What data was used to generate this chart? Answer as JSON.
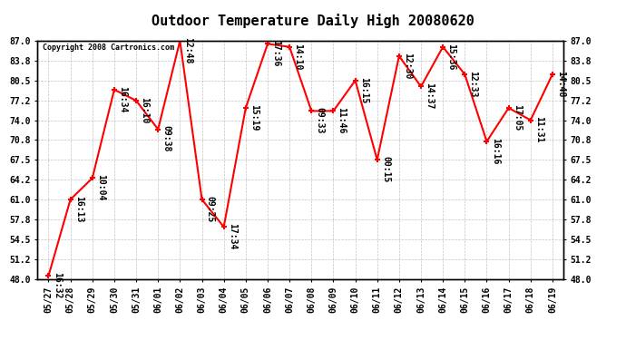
{
  "title": "Outdoor Temperature Daily High 20080620",
  "copyright": "Copyright 2008 Cartronics.com",
  "x_labels": [
    "05/27",
    "05/28",
    "05/29",
    "05/30",
    "05/31",
    "06/01",
    "06/02",
    "06/03",
    "06/04",
    "06/05",
    "06/06",
    "06/07",
    "06/08",
    "06/09",
    "06/10",
    "06/11",
    "06/12",
    "06/13",
    "06/14",
    "06/15",
    "06/16",
    "06/17",
    "06/18",
    "06/19"
  ],
  "y_values": [
    48.5,
    61.0,
    64.5,
    79.0,
    77.2,
    72.5,
    87.0,
    61.0,
    56.5,
    76.0,
    86.5,
    86.0,
    75.5,
    75.5,
    80.5,
    67.5,
    84.5,
    79.5,
    86.0,
    81.5,
    70.5,
    76.0,
    74.0,
    81.5
  ],
  "point_labels": [
    "16:32",
    "16:13",
    "10:04",
    "16:34",
    "16:10",
    "09:38",
    "12:48",
    "09:25",
    "17:34",
    "15:19",
    "17:36",
    "14:10",
    "09:33",
    "11:46",
    "16:15",
    "00:15",
    "12:30",
    "14:37",
    "15:36",
    "12:33",
    "16:16",
    "17:05",
    "11:31",
    "14:48"
  ],
  "ylim": [
    48.0,
    87.0
  ],
  "yticks": [
    48.0,
    51.2,
    54.5,
    57.8,
    61.0,
    64.2,
    67.5,
    70.8,
    74.0,
    77.2,
    80.5,
    83.8,
    87.0
  ],
  "line_color": "#ff0000",
  "marker_color": "#ff0000",
  "bg_color": "#ffffff",
  "plot_bg_color": "#ffffff",
  "grid_color": "#aaaaaa",
  "title_fontsize": 11,
  "tick_fontsize": 7,
  "annotation_fontsize": 7,
  "copyright_fontsize": 6
}
